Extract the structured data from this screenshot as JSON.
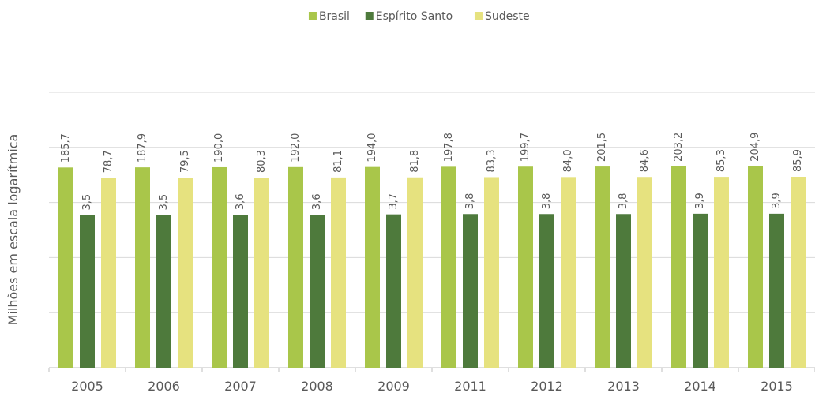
{
  "chart_data": {
    "type": "bar",
    "y_axis_label": "Milhões em escala logarítmica",
    "categories": [
      "2005",
      "2006",
      "2007",
      "2008",
      "2009",
      "2011",
      "2012",
      "2013",
      "2014",
      "2015"
    ],
    "series": [
      {
        "name": "Brasil",
        "color": "#a9c64a",
        "values": [
          185.7,
          187.9,
          190.0,
          192.0,
          194.0,
          197.8,
          199.7,
          201.5,
          203.2,
          204.9
        ],
        "value_labels": [
          "185,7",
          "187,9",
          "190,0",
          "192,0",
          "194,0",
          "197,8",
          "199,7",
          "201,5",
          "203,2",
          "204,9"
        ]
      },
      {
        "name": "Espírito Santo",
        "color": "#4e7a3c",
        "values": [
          3.5,
          3.5,
          3.6,
          3.6,
          3.7,
          3.8,
          3.8,
          3.8,
          3.9,
          3.9
        ],
        "value_labels": [
          "3,5",
          "3,5",
          "3,6",
          "3,6",
          "3,7",
          "3,8",
          "3,8",
          "3,8",
          "3,9",
          "3,9"
        ]
      },
      {
        "name": "Sudeste",
        "color": "#e6e27f",
        "values": [
          78.7,
          79.5,
          80.3,
          81.1,
          81.8,
          83.3,
          84.0,
          84.6,
          85.3,
          85.9
        ],
        "value_labels": [
          "78,7",
          "79,5",
          "80,3",
          "81,1",
          "81,8",
          "83,3",
          "84,0",
          "84,6",
          "85,3",
          "85,9"
        ]
      }
    ],
    "log_scale": true,
    "ylim": [
      1e-05,
      100000
    ],
    "yticks": [
      1e-05,
      0.001,
      0.1,
      10,
      1000,
      100000
    ],
    "grid": true,
    "legend": "top"
  }
}
